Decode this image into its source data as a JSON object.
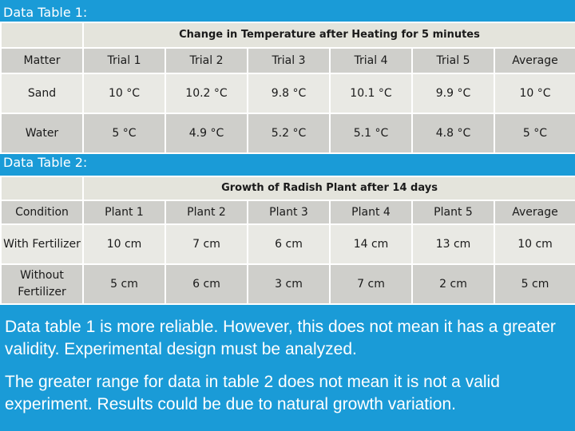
{
  "table1": {
    "caption": "Data Table 1:",
    "title": "Change in Temperature after Heating for 5 minutes",
    "headers": [
      "Matter",
      "Trial 1",
      "Trial 2",
      "Trial 3",
      "Trial 4",
      "Trial 5",
      "Average"
    ],
    "rows": [
      [
        "Sand",
        "10 °C",
        "10.2 °C",
        "9.8 °C",
        "10.1 °C",
        "9.9 °C",
        "10 °C"
      ],
      [
        "Water",
        "5 °C",
        "4.9 °C",
        "5.2 °C",
        "5.1 °C",
        "4.8 °C",
        "5 °C"
      ]
    ]
  },
  "table2": {
    "caption": "Data Table 2:",
    "title": "Growth of Radish Plant after 14 days",
    "headers": [
      "Condition",
      "Plant 1",
      "Plant 2",
      "Plant 3",
      "Plant 4",
      "Plant 5",
      "Average"
    ],
    "rows": [
      [
        "With Fertilizer",
        "10 cm",
        "7 cm",
        "6 cm",
        "14 cm",
        "13 cm",
        "10 cm"
      ],
      [
        "Without Fertilizer",
        "5 cm",
        "6 cm",
        "3 cm",
        "7 cm",
        "2 cm",
        "5 cm"
      ]
    ]
  },
  "notes": [
    "Data table 1 is more reliable.  However, this does not mean it has a greater validity.  Experimental design must be analyzed.",
    "The greater range for data in table 2 does not mean it is not a valid experiment. Results could be due to natural growth variation."
  ]
}
